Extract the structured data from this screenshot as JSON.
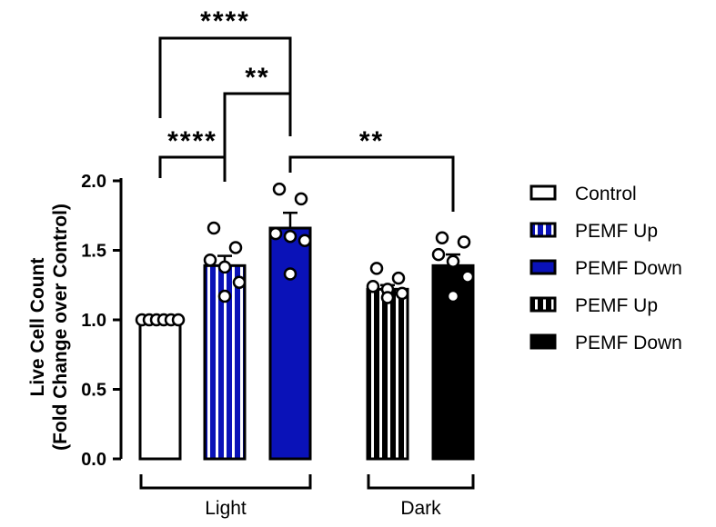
{
  "chart_data": {
    "type": "bar",
    "ylabel_line1": "Live Cell Count",
    "ylabel_line2": "(Fold Change over Control)",
    "ylim": [
      0,
      2.0
    ],
    "yticks": [
      "0.0",
      "0.5",
      "1.0",
      "1.5",
      "2.0"
    ],
    "groups": [
      {
        "label": "Light"
      },
      {
        "label": "Dark"
      }
    ],
    "bars": [
      {
        "series": "Control",
        "group": "Light",
        "value": 1.0,
        "error": 0.0,
        "points": [
          1.0,
          1.0,
          1.0,
          1.0,
          1.0,
          1.0
        ]
      },
      {
        "series": "PEMF Up",
        "group": "Light",
        "value": 1.39,
        "error": 0.07,
        "points": [
          1.66,
          1.52,
          1.43,
          1.38,
          1.27,
          1.17
        ]
      },
      {
        "series": "PEMF Down",
        "group": "Light",
        "value": 1.66,
        "error": 0.11,
        "points": [
          1.94,
          1.87,
          1.62,
          1.6,
          1.57,
          1.33
        ]
      },
      {
        "series": "PEMF Up",
        "group": "Dark",
        "value": 1.22,
        "error": 0.03,
        "points": [
          1.37,
          1.3,
          1.24,
          1.22,
          1.19,
          1.16
        ]
      },
      {
        "series": "PEMF Down",
        "group": "Dark",
        "value": 1.39,
        "error": 0.08,
        "points": [
          1.59,
          1.56,
          1.47,
          1.42,
          1.31,
          1.17
        ]
      }
    ],
    "legend": [
      {
        "label": "Control"
      },
      {
        "label": "PEMF Up"
      },
      {
        "label": "PEMF Down"
      },
      {
        "label": "PEMF Up"
      },
      {
        "label": "PEMF Down"
      }
    ],
    "significance": [
      {
        "label": "****"
      },
      {
        "label": "**"
      },
      {
        "label": "****"
      },
      {
        "label": "**"
      }
    ],
    "colors": {
      "blue": "#0a12b8",
      "black": "#000000",
      "white": "#ffffff"
    }
  }
}
